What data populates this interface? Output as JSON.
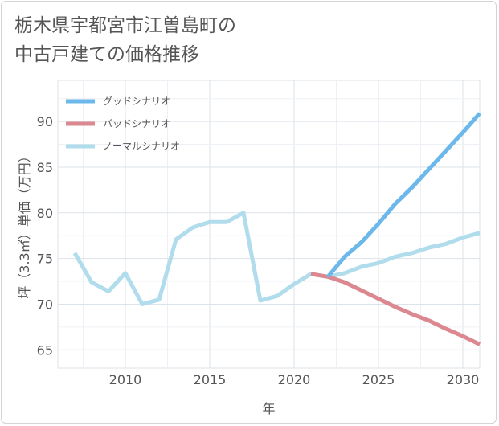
{
  "title_lines": [
    "栃木県宇都宮市江曽島町の",
    "中古戸建ての価格推移"
  ],
  "chart_data": {
    "type": "line",
    "xlabel": "年",
    "ylabel": "坪（3.3㎡）単価（万円）",
    "xlim": [
      2006,
      2031
    ],
    "ylim": [
      63,
      94.5
    ],
    "xticks": [
      2010,
      2015,
      2020,
      2025,
      2030
    ],
    "yticks": [
      65,
      70,
      75,
      80,
      85,
      90
    ],
    "grid": true,
    "legend_position": "top-left",
    "series": [
      {
        "name": "グッドシナリオ",
        "color": "#6cb8ea",
        "x": [
          2022,
          2023,
          2024,
          2025,
          2026,
          2027,
          2028,
          2029,
          2030,
          2031
        ],
        "values": [
          73.0,
          75.2,
          76.8,
          78.8,
          81.0,
          82.8,
          84.8,
          86.8,
          88.8,
          90.9
        ]
      },
      {
        "name": "バッドシナリオ",
        "color": "#dc8890",
        "x": [
          2021,
          2022,
          2023,
          2024,
          2025,
          2026,
          2027,
          2028,
          2029,
          2030,
          2031
        ],
        "values": [
          73.3,
          73.0,
          72.4,
          71.5,
          70.6,
          69.7,
          68.9,
          68.2,
          67.3,
          66.5,
          65.6
        ]
      },
      {
        "name": "ノーマルシナリオ",
        "color": "#b0dcec",
        "x": [
          2007,
          2008,
          2009,
          2010,
          2011,
          2012,
          2013,
          2014,
          2015,
          2016,
          2017,
          2018,
          2019,
          2020,
          2021,
          2022,
          2023,
          2024,
          2025,
          2026,
          2027,
          2028,
          2029,
          2030,
          2031
        ],
        "values": [
          75.6,
          72.4,
          71.4,
          73.4,
          70.0,
          70.5,
          77.1,
          78.4,
          79.0,
          79.0,
          80.0,
          70.4,
          70.9,
          72.2,
          73.3,
          73.0,
          73.4,
          74.1,
          74.5,
          75.2,
          75.6,
          76.2,
          76.6,
          77.3,
          77.8
        ]
      }
    ]
  }
}
